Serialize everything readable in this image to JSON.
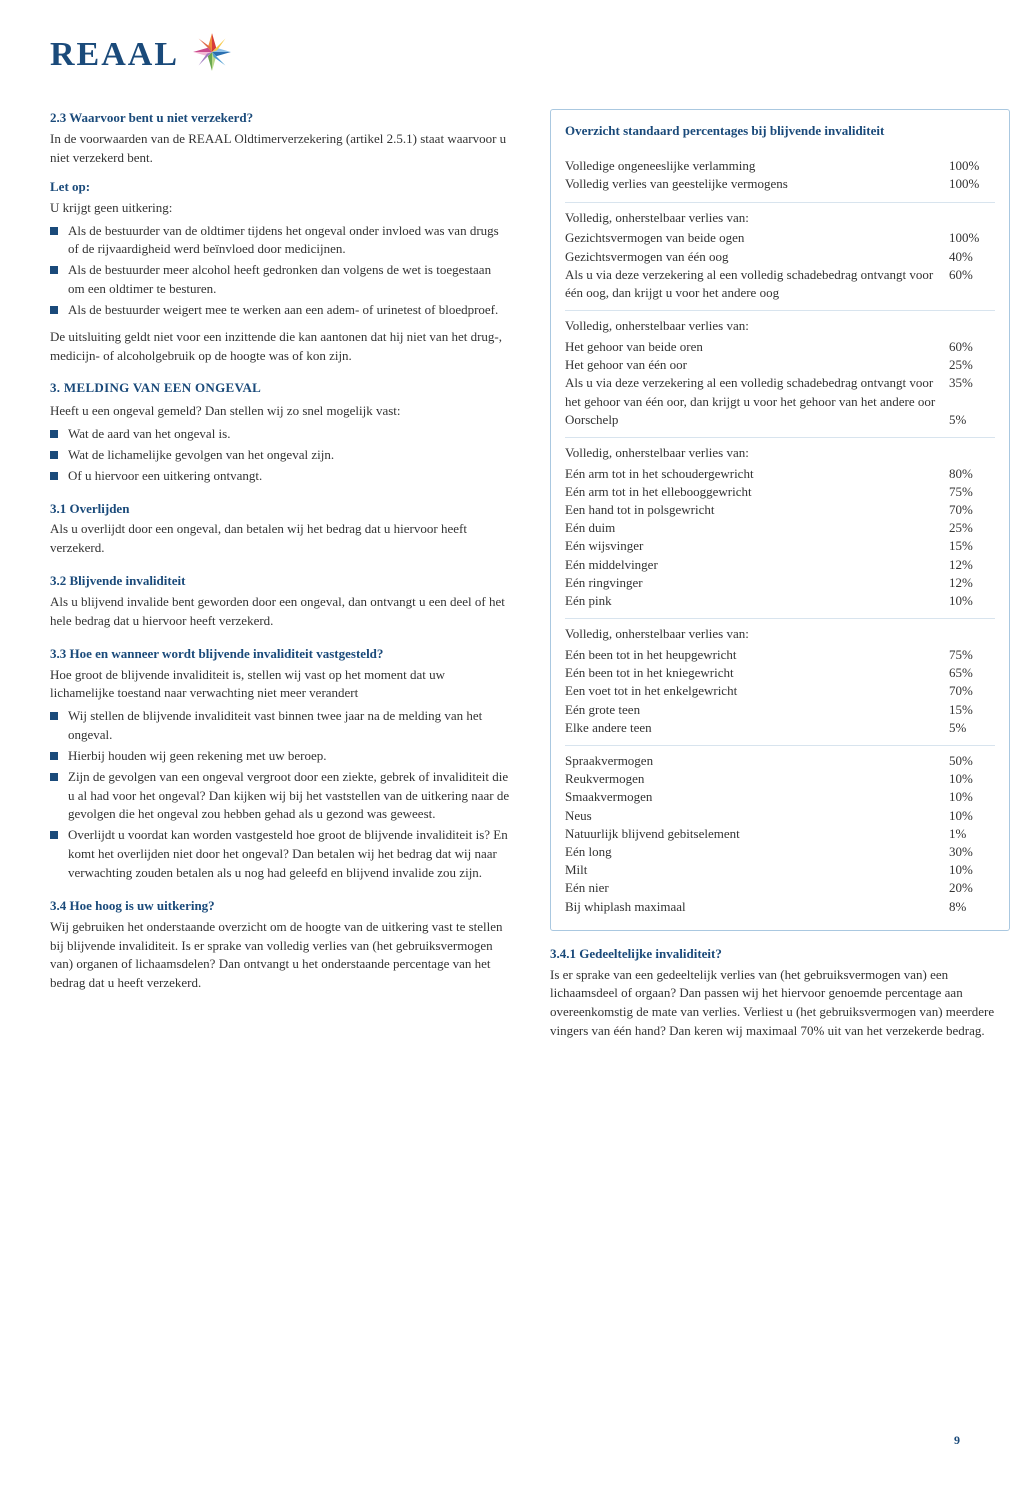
{
  "brand": {
    "name": "REAAL"
  },
  "colors": {
    "brand": "#1a4a7a",
    "border": "#aac8e0",
    "rule": "#d8e4ee",
    "text": "#333333"
  },
  "left": {
    "s23": {
      "title": "2.3 Waarvoor bent u niet verzekerd?",
      "body": "In de voorwaarden van de REAAL Oldtimerverzekering (artikel 2.5.1) staat waarvoor u niet verzekerd bent."
    },
    "letop": {
      "title": "Let op:",
      "intro": "U krijgt geen uitkering:",
      "items": [
        "Als de bestuurder van de oldtimer tijdens het ongeval onder invloed was van drugs of de rijvaardigheid werd beïnvloed door medicijnen.",
        "Als de bestuurder meer alcohol heeft gedronken dan volgens de wet is toegestaan om een oldtimer te besturen.",
        "Als de bestuurder weigert mee te werken aan een adem- of urinetest of bloedproef."
      ],
      "after": "De uitsluiting geldt niet voor een inzittende die kan aantonen dat hij niet van het drug-, medicijn- of alcoholgebruik op de hoogte was of kon zijn."
    },
    "s3": {
      "title": "3. MELDING VAN EEN ONGEVAL",
      "intro": "Heeft u een ongeval gemeld? Dan stellen wij zo snel mogelijk vast:",
      "items": [
        "Wat de aard van het ongeval is.",
        "Wat de lichamelijke gevolgen van het ongeval zijn.",
        "Of u hiervoor een uitkering ontvangt."
      ]
    },
    "s31": {
      "title": "3.1 Overlijden",
      "body": "Als u overlijdt door een ongeval, dan betalen wij het bedrag dat u hiervoor heeft verzekerd."
    },
    "s32": {
      "title": "3.2 Blijvende invaliditeit",
      "body": "Als u blijvend invalide bent geworden door een ongeval, dan ontvangt u een deel of het hele bedrag dat u hiervoor heeft verzekerd."
    },
    "s33": {
      "title": "3.3 Hoe en wanneer wordt blijvende invaliditeit vastgesteld?",
      "intro": "Hoe groot de blijvende invaliditeit is, stellen wij vast op het moment dat uw lichamelijke toestand naar verwachting niet meer verandert",
      "items": [
        "Wij stellen de blijvende invaliditeit vast binnen twee jaar na de melding van het ongeval.",
        "Hierbij houden wij geen rekening met uw beroep.",
        "Zijn de gevolgen van een ongeval vergroot door een ziekte, gebrek of invaliditeit die u al had voor het ongeval? Dan kijken wij bij het vaststellen van de uitkering naar de gevolgen die het ongeval zou hebben gehad als u gezond was geweest.",
        "Overlijdt u voordat kan worden vastgesteld hoe groot de blijvende invaliditeit is? En komt het overlijden niet door het ongeval? Dan betalen wij het bedrag dat wij naar verwachting zouden betalen als u nog had geleefd en blijvend invalide zou zijn."
      ]
    },
    "s34": {
      "title": "3.4 Hoe hoog is uw uitkering?",
      "body": "Wij gebruiken het onderstaande overzicht om de hoogte van de uitkering vast te stellen bij blijvende invaliditeit. Is er sprake van volledig verlies van (het gebruiksvermogen van) organen of lichaamsdelen? Dan ontvangt u het onderstaande percentage van het bedrag dat u heeft verzekerd."
    }
  },
  "right": {
    "table": {
      "title": "Overzicht standaard percentages bij blijvende invaliditeit",
      "sections": [
        {
          "rows": [
            {
              "label": "Volledige ongeneeslijke verlamming",
              "pct": "100%"
            },
            {
              "label": "Volledig verlies van geestelijke vermogens",
              "pct": "100%"
            }
          ]
        },
        {
          "head": "Volledig, onherstelbaar verlies van:",
          "rows": [
            {
              "label": "Gezichtsvermogen van beide ogen",
              "pct": "100%"
            },
            {
              "label": "Gezichtsvermogen van één oog",
              "pct": "40%"
            },
            {
              "label": "Als u via deze verzekering al een volledig schadebedrag ontvangt voor één oog, dan krijgt u voor het andere oog",
              "pct": "60%"
            }
          ]
        },
        {
          "head": "Volledig, onherstelbaar verlies van:",
          "rows": [
            {
              "label": "Het gehoor van beide oren",
              "pct": "60%"
            },
            {
              "label": "Het gehoor van één oor",
              "pct": "25%"
            },
            {
              "label": "Als u via deze verzekering al een volledig schadebedrag ontvangt voor het gehoor van één oor, dan krijgt u voor het gehoor van het andere oor",
              "pct": "35%"
            },
            {
              "label": "Oorschelp",
              "pct": "5%"
            }
          ]
        },
        {
          "head": "Volledig, onherstelbaar verlies van:",
          "rows": [
            {
              "label": "Eén arm tot in het schoudergewricht",
              "pct": "80%"
            },
            {
              "label": "Eén arm tot in het ellebooggewricht",
              "pct": "75%"
            },
            {
              "label": "Een hand tot in polsgewricht",
              "pct": "70%"
            },
            {
              "label": "Eén duim",
              "pct": "25%"
            },
            {
              "label": "Eén wijsvinger",
              "pct": "15%"
            },
            {
              "label": "Eén middelvinger",
              "pct": "12%"
            },
            {
              "label": "Eén ringvinger",
              "pct": "12%"
            },
            {
              "label": "Eén pink",
              "pct": "10%"
            }
          ]
        },
        {
          "head": "Volledig, onherstelbaar verlies van:",
          "rows": [
            {
              "label": "Eén been tot in het heupgewricht",
              "pct": "75%"
            },
            {
              "label": "Eén been tot in het kniegewricht",
              "pct": "65%"
            },
            {
              "label": "Een voet tot in het enkelgewricht",
              "pct": "70%"
            },
            {
              "label": "Eén grote teen",
              "pct": "15%"
            },
            {
              "label": "Elke andere teen",
              "pct": "5%"
            }
          ]
        },
        {
          "rows": [
            {
              "label": "Spraakvermogen",
              "pct": "50%"
            },
            {
              "label": "Reukvermogen",
              "pct": "10%"
            },
            {
              "label": "Smaakvermogen",
              "pct": "10%"
            },
            {
              "label": "Neus",
              "pct": "10%"
            },
            {
              "label": "Natuurlijk blijvend gebitselement",
              "pct": "1%"
            },
            {
              "label": "Eén long",
              "pct": "30%"
            },
            {
              "label": "Milt",
              "pct": "10%"
            },
            {
              "label": "Eén nier",
              "pct": "20%"
            },
            {
              "label": "Bij whiplash maximaal",
              "pct": "8%"
            }
          ]
        }
      ]
    },
    "s341": {
      "title": "3.4.1 Gedeeltelijke invaliditeit?",
      "body": "Is er sprake van een gedeeltelijk verlies van (het gebruiksvermogen van) een lichaamsdeel of orgaan? Dan passen wij het hiervoor genoemde percentage aan overeenkomstig de mate van verlies. Verliest u (het gebruiksvermogen van) meerdere vingers van één hand? Dan keren wij maximaal 70% uit van het verzekerde bedrag."
    }
  },
  "page_number": "9"
}
